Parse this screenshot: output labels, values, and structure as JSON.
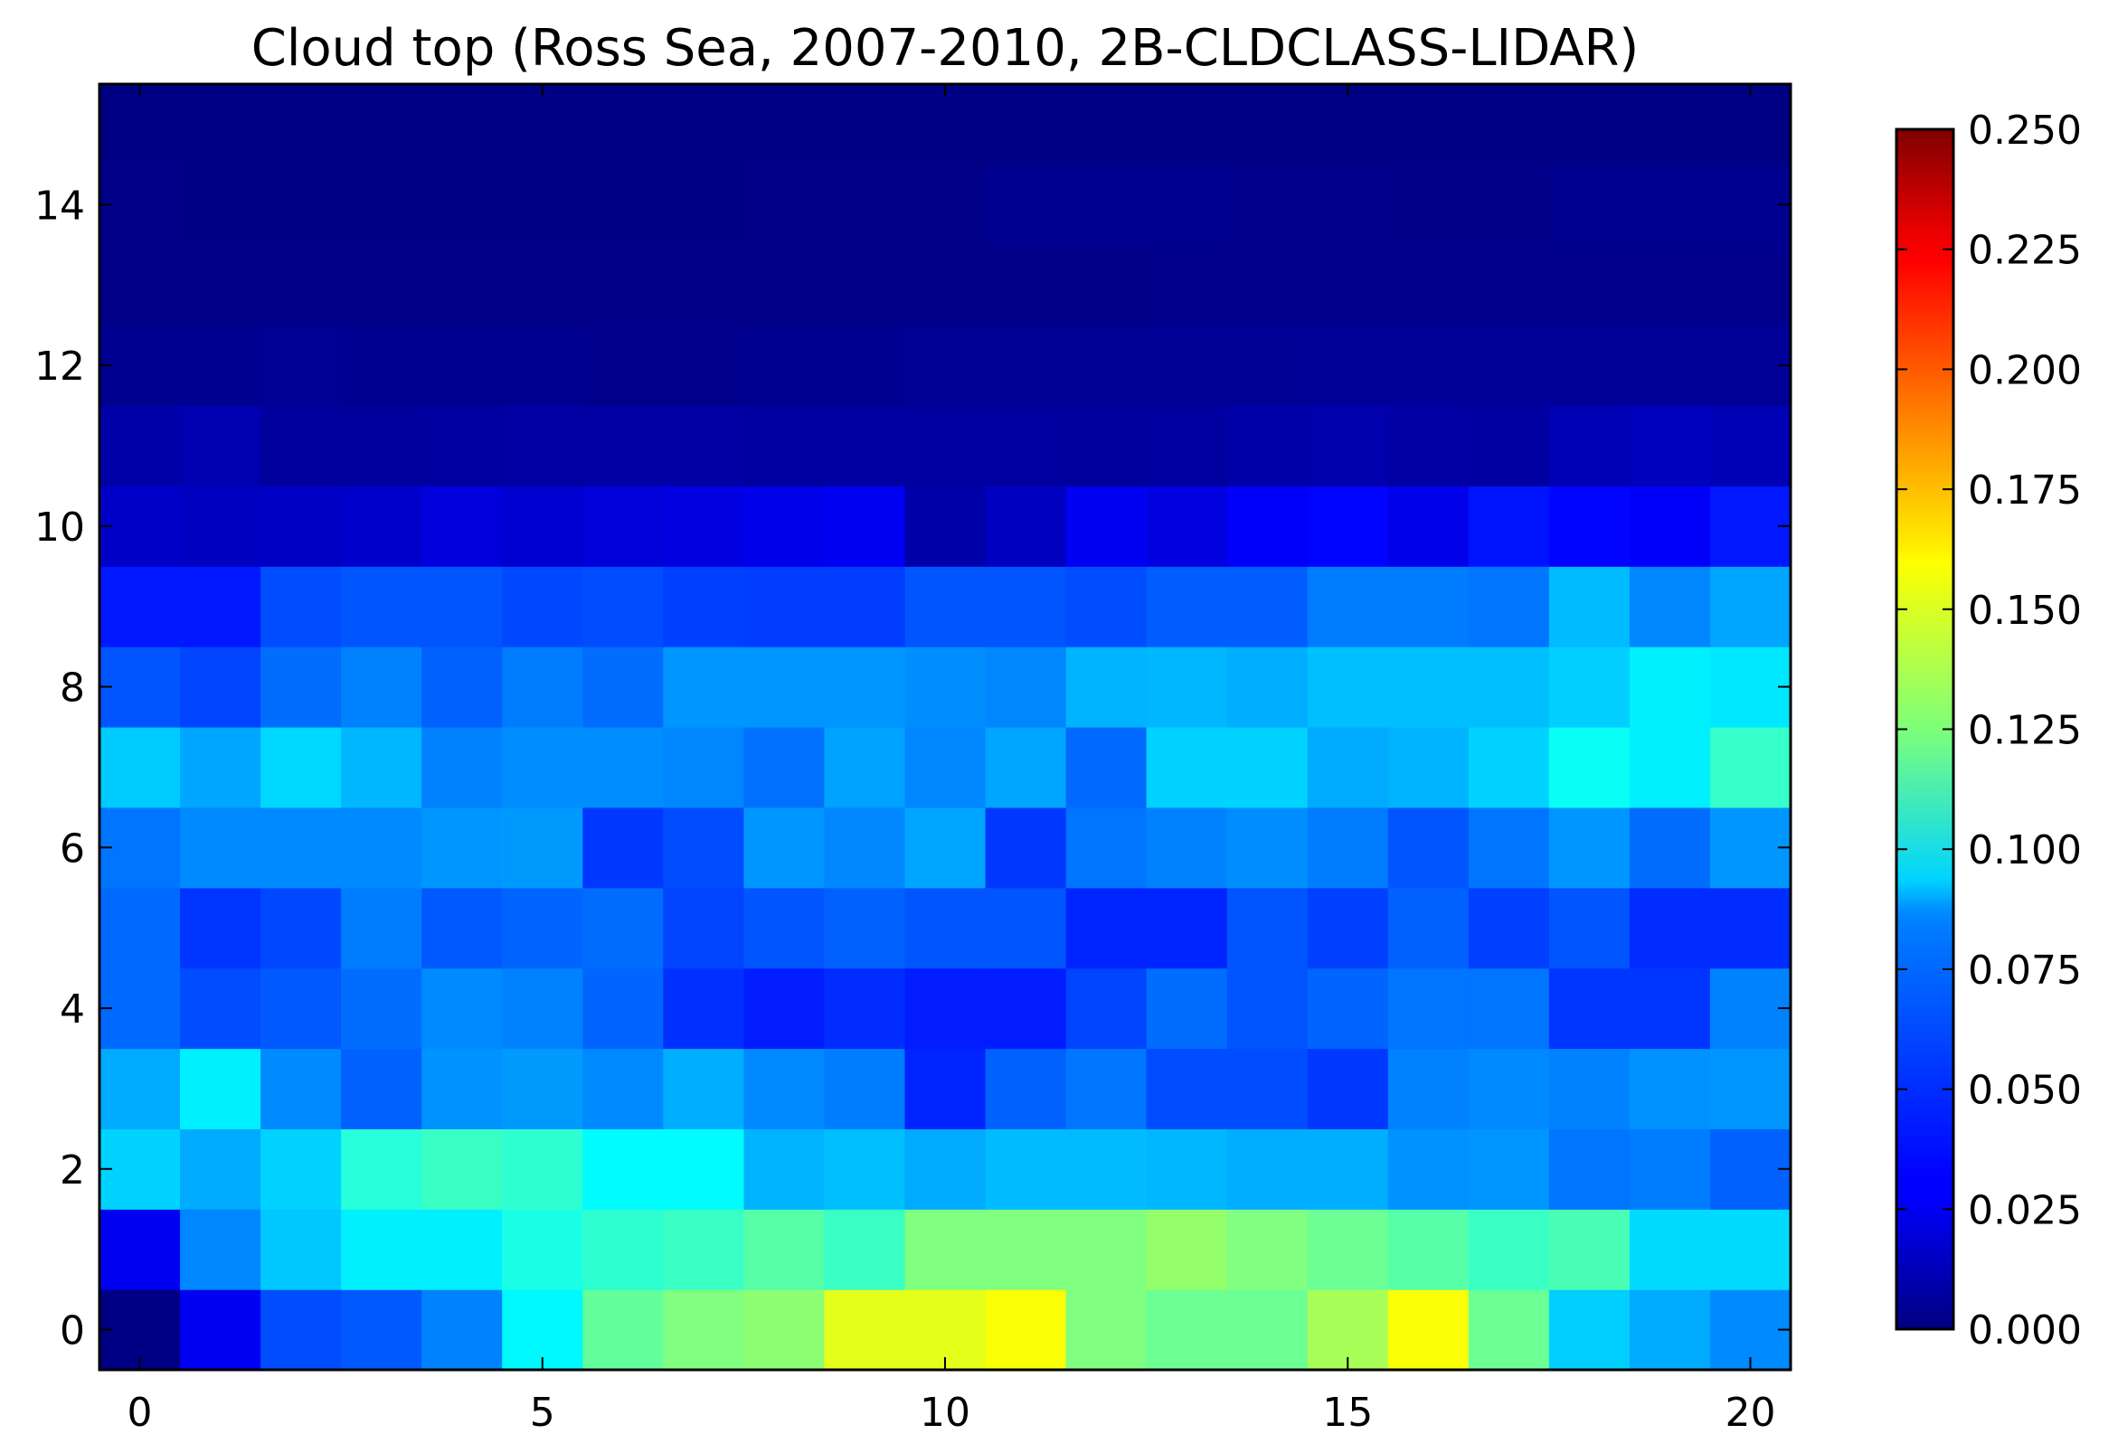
{
  "chart_data": {
    "type": "heatmap",
    "title": "Cloud top (Ross Sea, 2007-2010, 2B-CLDCLASS-LIDAR)",
    "xlabel": "",
    "ylabel": "",
    "x_ticks": [
      "0",
      "5",
      "10",
      "15",
      "20"
    ],
    "y_ticks": [
      "0",
      "2",
      "4",
      "6",
      "8",
      "10",
      "12",
      "14"
    ],
    "x_range": [
      -0.5,
      20.5
    ],
    "y_range": [
      -0.5,
      15.5
    ],
    "colormap": "jet",
    "color_range": [
      0,
      0.25
    ],
    "colorbar_ticks": [
      "0.000",
      "0.025",
      "0.050",
      "0.075",
      "0.100",
      "0.125",
      "0.150",
      "0.175",
      "0.200",
      "0.225",
      "0.250"
    ],
    "grid": false,
    "rows_note": "rows indexed by y from 0 (bottom) to 15 (top); columns x = 0..20",
    "values": [
      [
        0.001,
        0.028,
        0.05,
        0.053,
        0.063,
        0.092,
        0.118,
        0.125,
        0.128,
        0.15,
        0.15,
        0.155,
        0.125,
        0.12,
        0.12,
        0.135,
        0.155,
        0.12,
        0.082,
        0.073,
        0.065
      ],
      [
        0.028,
        0.064,
        0.08,
        0.09,
        0.09,
        0.1,
        0.105,
        0.108,
        0.115,
        0.108,
        0.125,
        0.125,
        0.125,
        0.13,
        0.125,
        0.12,
        0.115,
        0.108,
        0.112,
        0.085,
        0.085
      ],
      [
        0.083,
        0.073,
        0.083,
        0.103,
        0.108,
        0.105,
        0.093,
        0.093,
        0.075,
        0.078,
        0.073,
        0.077,
        0.077,
        0.076,
        0.074,
        0.074,
        0.067,
        0.068,
        0.06,
        0.062,
        0.055
      ],
      [
        0.073,
        0.09,
        0.065,
        0.055,
        0.067,
        0.069,
        0.065,
        0.074,
        0.065,
        0.062,
        0.04,
        0.055,
        0.06,
        0.05,
        0.05,
        0.045,
        0.063,
        0.065,
        0.063,
        0.067,
        0.068
      ],
      [
        0.057,
        0.05,
        0.053,
        0.058,
        0.065,
        0.063,
        0.056,
        0.043,
        0.038,
        0.042,
        0.038,
        0.038,
        0.048,
        0.058,
        0.052,
        0.056,
        0.06,
        0.06,
        0.044,
        0.044,
        0.063
      ],
      [
        0.057,
        0.044,
        0.049,
        0.062,
        0.053,
        0.056,
        0.058,
        0.048,
        0.052,
        0.055,
        0.052,
        0.052,
        0.04,
        0.04,
        0.052,
        0.047,
        0.055,
        0.047,
        0.052,
        0.042,
        0.042
      ],
      [
        0.06,
        0.065,
        0.065,
        0.065,
        0.068,
        0.069,
        0.045,
        0.05,
        0.068,
        0.064,
        0.072,
        0.045,
        0.06,
        0.063,
        0.066,
        0.062,
        0.052,
        0.06,
        0.068,
        0.058,
        0.068
      ],
      [
        0.081,
        0.072,
        0.084,
        0.076,
        0.063,
        0.066,
        0.066,
        0.064,
        0.059,
        0.071,
        0.064,
        0.072,
        0.057,
        0.083,
        0.083,
        0.073,
        0.075,
        0.083,
        0.096,
        0.09,
        0.107
      ],
      [
        0.052,
        0.048,
        0.058,
        0.063,
        0.055,
        0.062,
        0.058,
        0.068,
        0.068,
        0.068,
        0.066,
        0.064,
        0.075,
        0.076,
        0.074,
        0.078,
        0.078,
        0.078,
        0.082,
        0.09,
        0.088
      ],
      [
        0.037,
        0.037,
        0.05,
        0.052,
        0.052,
        0.049,
        0.05,
        0.047,
        0.046,
        0.046,
        0.052,
        0.052,
        0.05,
        0.054,
        0.054,
        0.062,
        0.062,
        0.06,
        0.077,
        0.064,
        0.072
      ],
      [
        0.018,
        0.016,
        0.017,
        0.019,
        0.023,
        0.02,
        0.022,
        0.024,
        0.026,
        0.028,
        0.01,
        0.016,
        0.028,
        0.024,
        0.03,
        0.032,
        0.026,
        0.036,
        0.032,
        0.03,
        0.037
      ],
      [
        0.01,
        0.012,
        0.007,
        0.007,
        0.008,
        0.009,
        0.009,
        0.009,
        0.008,
        0.008,
        0.008,
        0.008,
        0.007,
        0.008,
        0.01,
        0.011,
        0.009,
        0.008,
        0.013,
        0.015,
        0.013
      ],
      [
        0.004,
        0.004,
        0.005,
        0.004,
        0.004,
        0.004,
        0.003,
        0.003,
        0.004,
        0.004,
        0.005,
        0.005,
        0.005,
        0.005,
        0.005,
        0.006,
        0.006,
        0.006,
        0.006,
        0.006,
        0.006
      ],
      [
        0.002,
        0.002,
        0.002,
        0.002,
        0.002,
        0.002,
        0.002,
        0.002,
        0.002,
        0.002,
        0.002,
        0.002,
        0.002,
        0.003,
        0.003,
        0.003,
        0.003,
        0.003,
        0.003,
        0.003,
        0.003
      ],
      [
        0.002,
        0.001,
        0.001,
        0.001,
        0.001,
        0.001,
        0.001,
        0.001,
        0.002,
        0.002,
        0.002,
        0.004,
        0.004,
        0.004,
        0.003,
        0.003,
        0.002,
        0.002,
        0.004,
        0.004,
        0.004
      ],
      [
        0.001,
        0.001,
        0.001,
        0.001,
        0.001,
        0.001,
        0.001,
        0.001,
        0.001,
        0.001,
        0.001,
        0.001,
        0.001,
        0.001,
        0.001,
        0.001,
        0.001,
        0.001,
        0.001,
        0.001,
        0.001
      ]
    ]
  }
}
